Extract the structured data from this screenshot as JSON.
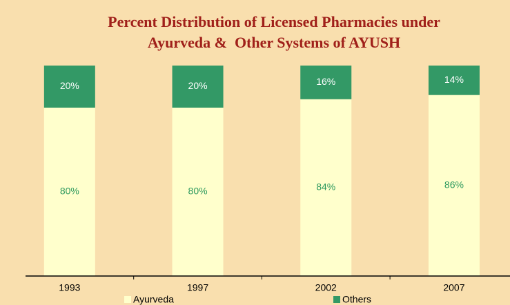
{
  "chart_data": {
    "type": "stacked_bar",
    "title": [
      "Percent Distribution of Licensed Pharmacies under",
      "Ayurveda &  Other Systems of AYUSH"
    ],
    "categories": [
      "1993",
      "1997",
      "2002",
      "2007"
    ],
    "series": [
      {
        "name": "Ayurveda",
        "color": "#ffffcc",
        "label_color": "#2e9a5e",
        "values": [
          80,
          80,
          84,
          86
        ],
        "value_labels": [
          "80%",
          "80%",
          "84%",
          "86%"
        ]
      },
      {
        "name": "Others",
        "color": "#339966",
        "label_color": "#ffffff",
        "values": [
          20,
          20,
          16,
          14
        ],
        "value_labels": [
          "20%",
          "20%",
          "16%",
          "14%"
        ]
      }
    ],
    "ylim": [
      0,
      100
    ]
  }
}
